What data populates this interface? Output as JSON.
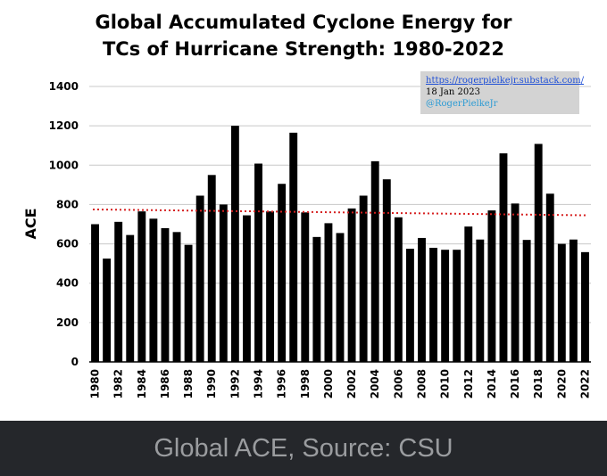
{
  "caption": "Global ACE, Source: CSU",
  "source_box": {
    "url": "https://rogerpielkejr.substack.com/",
    "date": "18 Jan 2023",
    "handle": "@RogerPielkeJr"
  },
  "colors": {
    "bar": "#000000",
    "trend": "#d62020",
    "grid": "#c8c8c8",
    "caption_bg": "#25272b"
  },
  "chart_data": {
    "type": "bar",
    "title": "Global Accumulated Cyclone Energy for TCs of Hurricane Strength: 1980-2022",
    "title_lines": [
      "Global Accumulated Cyclone Energy for",
      "TCs of Hurricane Strength: 1980-2022"
    ],
    "xlabel": "",
    "ylabel": "ACE",
    "ylim": [
      0,
      1400
    ],
    "yticks": [
      0,
      200,
      400,
      600,
      800,
      1000,
      1200,
      1400
    ],
    "grid": true,
    "categories": [
      "1980",
      "1981",
      "1982",
      "1983",
      "1984",
      "1985",
      "1986",
      "1987",
      "1988",
      "1989",
      "1990",
      "1991",
      "1992",
      "1993",
      "1994",
      "1995",
      "1996",
      "1997",
      "1998",
      "1999",
      "2000",
      "2001",
      "2002",
      "2003",
      "2004",
      "2005",
      "2006",
      "2007",
      "2008",
      "2009",
      "2010",
      "2011",
      "2012",
      "2013",
      "2014",
      "2015",
      "2016",
      "2017",
      "2018",
      "2019",
      "2020",
      "2021",
      "2022"
    ],
    "xtick_labels": [
      "1980",
      "1982",
      "1984",
      "1986",
      "1988",
      "1990",
      "1992",
      "1994",
      "1996",
      "1998",
      "2000",
      "2002",
      "2004",
      "2006",
      "2008",
      "2010",
      "2012",
      "2014",
      "2016",
      "2018",
      "2020",
      "2022"
    ],
    "values": [
      700,
      525,
      712,
      645,
      765,
      728,
      680,
      660,
      595,
      845,
      950,
      800,
      1200,
      745,
      1008,
      765,
      905,
      1165,
      760,
      635,
      705,
      655,
      780,
      845,
      1020,
      928,
      735,
      575,
      630,
      580,
      570,
      570,
      688,
      622,
      770,
      1060,
      805,
      620,
      1108,
      855,
      600,
      622,
      558
    ],
    "trend": {
      "start": 775,
      "end": 745,
      "style": "dotted"
    }
  }
}
